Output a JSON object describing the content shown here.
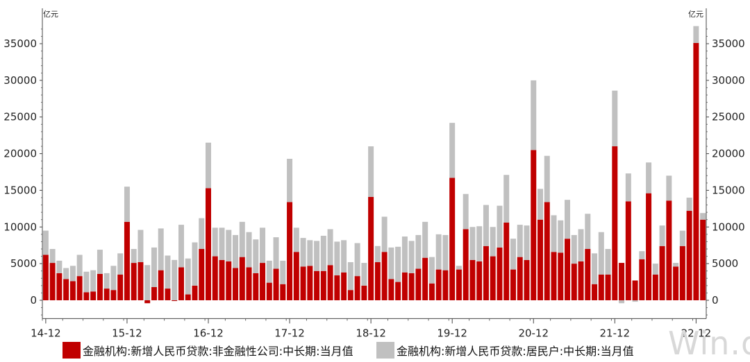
{
  "chart_data": {
    "type": "bar",
    "stacked": true,
    "ylabel_left": "亿元",
    "ylabel_right": "亿元",
    "ylim": [
      -2500,
      37500
    ],
    "yticks": [
      0,
      5000,
      10000,
      15000,
      20000,
      25000,
      30000,
      35000
    ],
    "xticks": [
      {
        "index": 0,
        "label": "14-12"
      },
      {
        "index": 12,
        "label": "15-12"
      },
      {
        "index": 24,
        "label": "16-12"
      },
      {
        "index": 36,
        "label": "17-12"
      },
      {
        "index": 48,
        "label": "18-12"
      },
      {
        "index": 60,
        "label": "19-12"
      },
      {
        "index": 72,
        "label": "20-12"
      },
      {
        "index": 84,
        "label": "21-12"
      },
      {
        "index": 96,
        "label": "22-12"
      }
    ],
    "series": [
      {
        "name": "金融机构:新增人民币贷款:非金融性公司:中长期:当月值",
        "color": "#c00000",
        "values": [
          6200,
          5100,
          3700,
          2900,
          2600,
          3300,
          1100,
          1200,
          3600,
          1600,
          1400,
          3500,
          10700,
          5100,
          5200,
          -400,
          1800,
          4100,
          1600,
          -100,
          4500,
          800,
          2000,
          7000,
          15300,
          6000,
          5500,
          5300,
          4400,
          5900,
          4500,
          3700,
          5100,
          2400,
          4300,
          2200,
          13400,
          6600,
          4600,
          4700,
          4000,
          4000,
          4800,
          3400,
          3800,
          1400,
          3300,
          2000,
          14100,
          5200,
          6600,
          2900,
          2500,
          3800,
          3700,
          4300,
          5800,
          2300,
          4200,
          4100,
          16700,
          4200,
          9700,
          5500,
          5300,
          7400,
          6000,
          7200,
          10600,
          4200,
          5900,
          5500,
          20500,
          11000,
          13400,
          6600,
          6500,
          8400,
          5000,
          5300,
          7000,
          2200,
          3500,
          3500,
          21000,
          5100,
          13500,
          2700,
          5600,
          14600,
          3500,
          7400,
          13600,
          4600,
          7400,
          12200,
          35100,
          11000
        ]
      },
      {
        "name": "金融机构:新增人民币贷款:居民户:中长期:当月值",
        "color": "#c0c0c0",
        "values": [
          3300,
          1900,
          1700,
          1500,
          2100,
          2900,
          2800,
          2900,
          3300,
          2100,
          3300,
          2900,
          4800,
          1900,
          4400,
          4800,
          5400,
          5700,
          4500,
          5500,
          5800,
          4900,
          5900,
          4200,
          6200,
          3900,
          4400,
          4300,
          4500,
          4800,
          4800,
          4600,
          4800,
          3000,
          4300,
          3200,
          5900,
          3300,
          3900,
          3500,
          4100,
          4800,
          4900,
          4600,
          4400,
          3800,
          4500,
          3100,
          6900,
          2200,
          4800,
          4300,
          4800,
          4900,
          4400,
          4600,
          4900,
          3600,
          4800,
          4800,
          7500,
          500,
          4800,
          4500,
          4800,
          5600,
          4000,
          5700,
          6500,
          4200,
          4400,
          4700,
          9500,
          4200,
          6300,
          5000,
          4400,
          5300,
          3900,
          4400,
          4800,
          4200,
          5800,
          3500,
          7600,
          -400,
          3800,
          -200,
          1100,
          4200,
          1500,
          2800,
          3400,
          500,
          2100,
          1800,
          2300,
          900
        ]
      }
    ]
  },
  "legend": [
    {
      "label": "金融机构:新增人民币贷款:非金融性公司:中长期:当月值",
      "color": "#c00000"
    },
    {
      "label": "金融机构:新增人民币贷款:居民户:中长期:当月值",
      "color": "#c0c0c0"
    }
  ],
  "watermark": "Win.d"
}
